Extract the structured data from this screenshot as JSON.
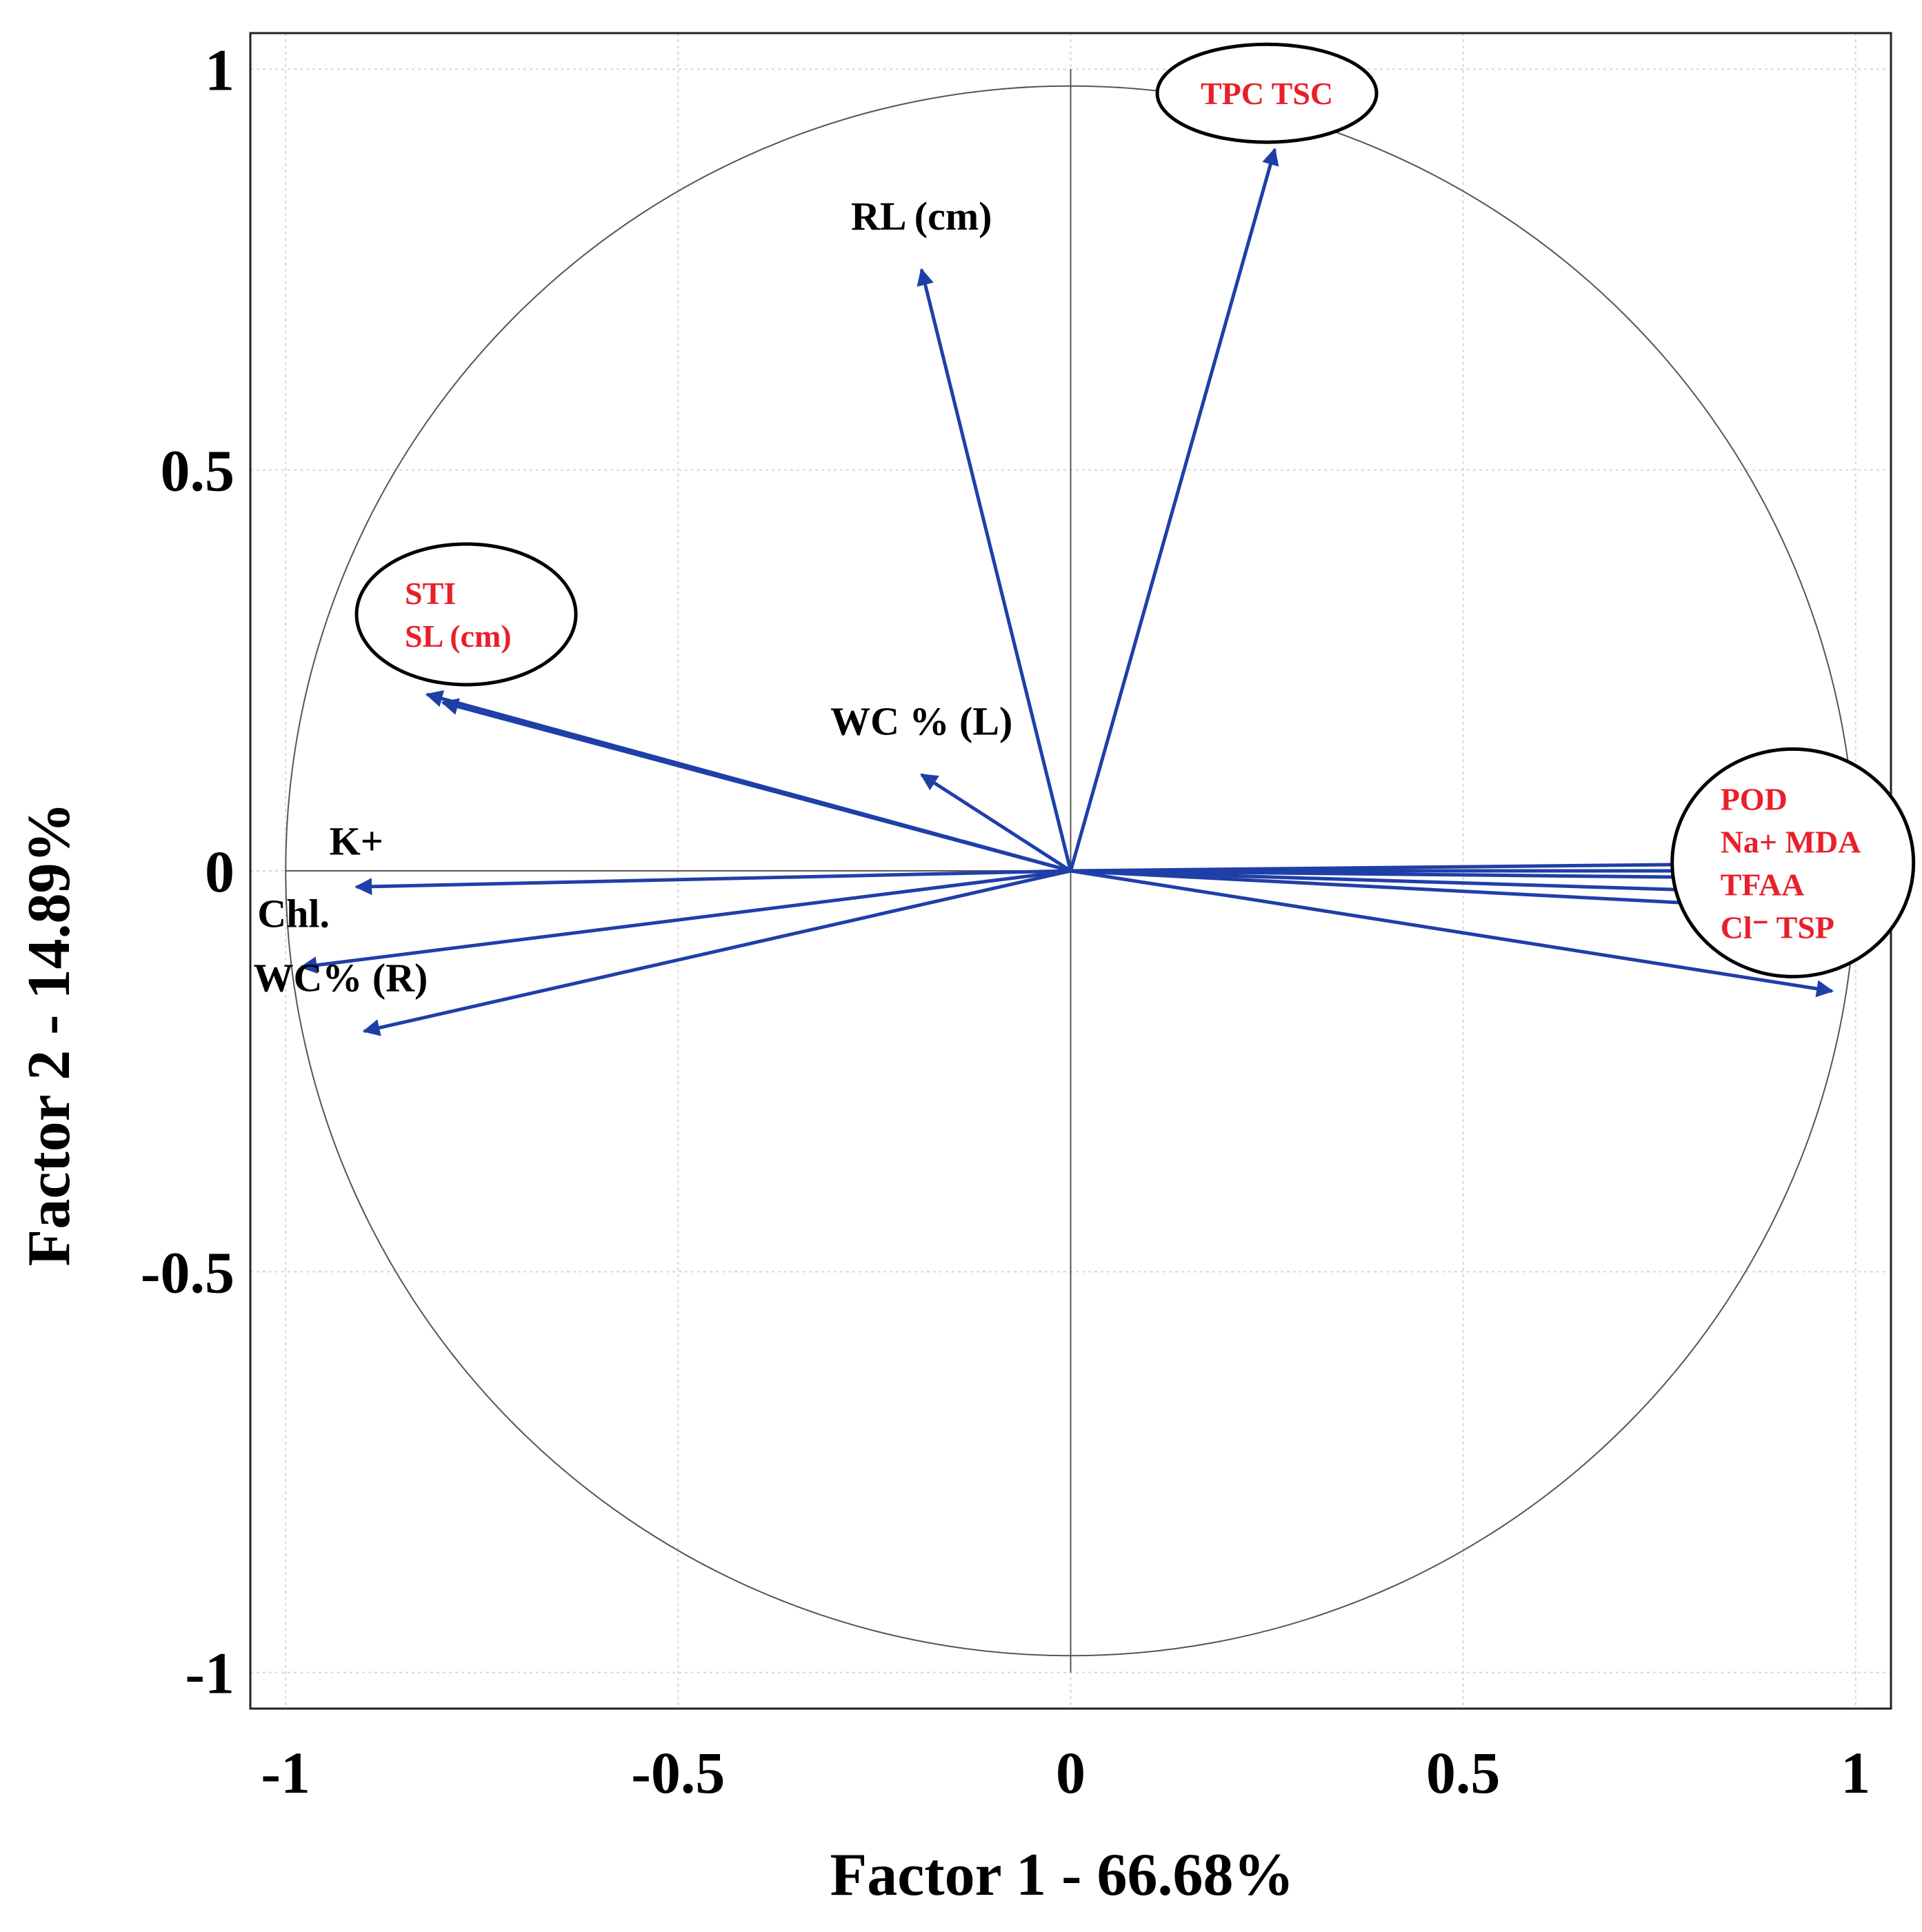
{
  "chart_data": {
    "type": "scatter",
    "subtype": "pca-loading-biplot",
    "xlabel": "Factor 1  - 66.68%",
    "ylabel": "Factor 2  - 14.89%",
    "xlim": [
      -1.045,
      1.045
    ],
    "ylim": [
      -1.045,
      1.045
    ],
    "xticks": [
      -1,
      -0.5,
      0,
      0.5,
      1
    ],
    "yticks": [
      -1,
      -0.5,
      0,
      0.5,
      1
    ],
    "xtick_labels": [
      "-1",
      "-0.5",
      "0",
      "0.5",
      "1"
    ],
    "ytick_labels": [
      "-1",
      "-0.5",
      "0",
      "0.5",
      "1"
    ],
    "grid": true,
    "unit_circle": true,
    "arrow_color": "#1f3fa8",
    "highlight_color": "#e8202a",
    "vectors": [
      {
        "name": "TPC TSC",
        "x": 0.26,
        "y": 0.9
      },
      {
        "name": "RL (cm)",
        "x": -0.19,
        "y": 0.75
      },
      {
        "name": "STI",
        "x": -0.82,
        "y": 0.22
      },
      {
        "name": "SL (cm)",
        "x": -0.8,
        "y": 0.21
      },
      {
        "name": "WC % (L)",
        "x": -0.19,
        "y": 0.12
      },
      {
        "name": "K+",
        "x": -0.91,
        "y": -0.02
      },
      {
        "name": "Chl.",
        "x": -0.98,
        "y": -0.12
      },
      {
        "name": "WC% (R)",
        "x": -0.9,
        "y": -0.2
      },
      {
        "name": "POD",
        "x": 0.99,
        "y": 0.01
      },
      {
        "name": "Na+",
        "x": 0.99,
        "y": 0.0
      },
      {
        "name": "MDA",
        "x": 0.99,
        "y": -0.01
      },
      {
        "name": "TFAA",
        "x": 0.99,
        "y": -0.03
      },
      {
        "name": "Cl-",
        "x": 0.98,
        "y": -0.05
      },
      {
        "name": "TSP",
        "x": 0.97,
        "y": -0.15
      }
    ],
    "annotations": {
      "plain_labels": [
        {
          "text": "RL (cm)",
          "x": -0.19,
          "y": 0.8
        },
        {
          "text": "WC % (L)",
          "x": -0.19,
          "y": 0.17
        },
        {
          "text": "K+",
          "x": -0.91,
          "y": 0.02
        },
        {
          "text": "Chl.",
          "x": -0.99,
          "y": -0.07
        },
        {
          "text": "WC% (R)",
          "x": -0.93,
          "y": -0.15
        }
      ],
      "circled_groups": [
        {
          "lines": [
            "TPC TSC"
          ],
          "x": 0.25,
          "y": 0.97
        },
        {
          "lines": [
            "STI",
            "SL (cm)"
          ],
          "x": -0.77,
          "y": 0.32
        },
        {
          "lines": [
            "POD",
            "Na+ MDA",
            "TFAA",
            "Cl⁻ TSP"
          ],
          "x": 0.92,
          "y": 0.01
        }
      ]
    }
  }
}
